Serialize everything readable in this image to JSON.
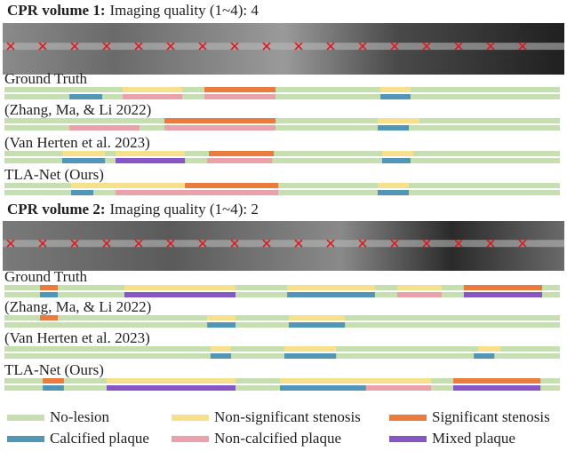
{
  "volumes": [
    {
      "title": "CPR volume 1:",
      "quality": "Imaging quality (1~4): 4",
      "methods": [
        {
          "name": "Ground Truth",
          "stenosis": [
            {
              "start": 21.3,
              "end": 32,
              "kind": 1
            },
            {
              "start": 36,
              "end": 48.8,
              "kind": 2
            },
            {
              "start": 67.7,
              "end": 73.1,
              "kind": 1
            }
          ],
          "plaque": [
            {
              "start": 11.7,
              "end": 17.6,
              "kind": 3
            },
            {
              "start": 21.3,
              "end": 32,
              "kind": 4
            },
            {
              "start": 36,
              "end": 48.8,
              "kind": 4
            },
            {
              "start": 67.7,
              "end": 73.1,
              "kind": 3
            }
          ]
        },
        {
          "name": "(Zhang, Ma, & Li 2022)",
          "stenosis": [
            {
              "start": 28.8,
              "end": 48.8,
              "kind": 2
            },
            {
              "start": 67.2,
              "end": 74.7,
              "kind": 1
            }
          ],
          "plaque": [
            {
              "start": 11.7,
              "end": 24.3,
              "kind": 4
            },
            {
              "start": 28.8,
              "end": 48.8,
              "kind": 4
            },
            {
              "start": 67.2,
              "end": 72.8,
              "kind": 3
            }
          ]
        },
        {
          "name": "(Van Herten et al. 2023)",
          "stenosis": [
            {
              "start": 10.4,
              "end": 18.1,
              "kind": 1
            },
            {
              "start": 20,
              "end": 32.5,
              "kind": 1
            },
            {
              "start": 36.8,
              "end": 48.5,
              "kind": 2
            },
            {
              "start": 68,
              "end": 73.6,
              "kind": 1
            }
          ],
          "plaque": [
            {
              "start": 10.4,
              "end": 18.1,
              "kind": 3
            },
            {
              "start": 20,
              "end": 32.5,
              "kind": 5
            },
            {
              "start": 36.5,
              "end": 48.2,
              "kind": 4
            },
            {
              "start": 68,
              "end": 73.1,
              "kind": 3
            }
          ]
        },
        {
          "name": "TLA-Net (Ours)",
          "stenosis": [
            {
              "start": 12,
              "end": 20,
              "kind": 1
            },
            {
              "start": 20,
              "end": 32.5,
              "kind": 1
            },
            {
              "start": 32.5,
              "end": 49.3,
              "kind": 2
            },
            {
              "start": 67.2,
              "end": 72.8,
              "kind": 1
            }
          ],
          "plaque": [
            {
              "start": 12,
              "end": 16,
              "kind": 3
            },
            {
              "start": 20,
              "end": 49.3,
              "kind": 4
            },
            {
              "start": 67.2,
              "end": 72.8,
              "kind": 3
            }
          ]
        }
      ]
    },
    {
      "title": "CPR volume 2:",
      "quality": "Imaging quality (1~4): 2",
      "methods": [
        {
          "name": "Ground Truth",
          "stenosis": [
            {
              "start": 6.4,
              "end": 9.6,
              "kind": 2
            },
            {
              "start": 21.6,
              "end": 41.6,
              "kind": 1
            },
            {
              "start": 50.9,
              "end": 66.7,
              "kind": 1
            },
            {
              "start": 70.7,
              "end": 78.7,
              "kind": 1
            },
            {
              "start": 82.7,
              "end": 96.8,
              "kind": 2
            }
          ],
          "plaque": [
            {
              "start": 6.4,
              "end": 9.6,
              "kind": 3
            },
            {
              "start": 21.6,
              "end": 41.6,
              "kind": 5
            },
            {
              "start": 50.9,
              "end": 66.7,
              "kind": 3
            },
            {
              "start": 70.7,
              "end": 78.7,
              "kind": 4
            },
            {
              "start": 82.7,
              "end": 96.8,
              "kind": 5
            }
          ]
        },
        {
          "name": "(Zhang, Ma, & Li 2022)",
          "stenosis": [
            {
              "start": 6.4,
              "end": 9.6,
              "kind": 2
            },
            {
              "start": 36.5,
              "end": 41.6,
              "kind": 1
            },
            {
              "start": 51.2,
              "end": 61.3,
              "kind": 1
            }
          ],
          "plaque": [
            {
              "start": 36.5,
              "end": 41.6,
              "kind": 3
            },
            {
              "start": 51.2,
              "end": 61.3,
              "kind": 3
            }
          ]
        },
        {
          "name": "(Van Herten et al. 2023)",
          "stenosis": [
            {
              "start": 37.1,
              "end": 40.8,
              "kind": 1
            },
            {
              "start": 50.4,
              "end": 59.7,
              "kind": 1
            },
            {
              "start": 85.3,
              "end": 89.3,
              "kind": 1
            }
          ],
          "plaque": [
            {
              "start": 37.1,
              "end": 40.8,
              "kind": 3
            },
            {
              "start": 50.4,
              "end": 59.7,
              "kind": 3
            },
            {
              "start": 84.5,
              "end": 88.2,
              "kind": 3
            }
          ]
        },
        {
          "name": "TLA-Net (Ours)",
          "stenosis": [
            {
              "start": 6.9,
              "end": 10.7,
              "kind": 2
            },
            {
              "start": 18.4,
              "end": 41.6,
              "kind": 1
            },
            {
              "start": 49.6,
              "end": 76.8,
              "kind": 1
            },
            {
              "start": 80.8,
              "end": 96.5,
              "kind": 2
            }
          ],
          "plaque": [
            {
              "start": 6.9,
              "end": 10.7,
              "kind": 3
            },
            {
              "start": 18.4,
              "end": 41.6,
              "kind": 5
            },
            {
              "start": 49.6,
              "end": 65.1,
              "kind": 3
            },
            {
              "start": 65.1,
              "end": 76.8,
              "kind": 4
            },
            {
              "start": 80.8,
              "end": 96.5,
              "kind": 5
            }
          ]
        }
      ]
    }
  ],
  "legend": [
    {
      "label": "No-lesion",
      "color": "#c5dfb0"
    },
    {
      "label": "Non-significant stenosis",
      "color": "#f6e08c"
    },
    {
      "label": "Significant stenosis",
      "color": "#ea7b3c"
    },
    {
      "label": "Calcified plaque",
      "color": "#5196b6"
    },
    {
      "label": "Non-calcified plaque",
      "color": "#e9a2a9"
    },
    {
      "label": "Mixed plaque",
      "color": "#8657c4"
    }
  ]
}
